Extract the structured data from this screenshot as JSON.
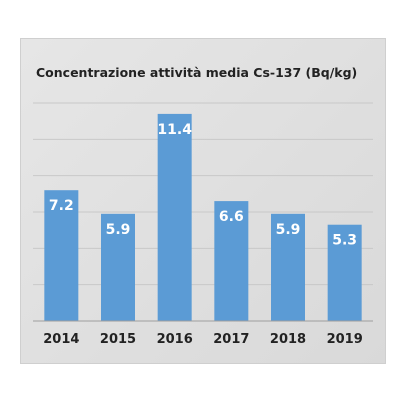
{
  "chart_data": {
    "type": "bar",
    "title": "Concentrazione attività media Cs-137 (Bq/kg)",
    "categories": [
      "2014",
      "2015",
      "2016",
      "2017",
      "2018",
      "2019"
    ],
    "values": [
      7.2,
      5.9,
      11.4,
      6.6,
      5.9,
      5.3
    ],
    "data_labels": [
      "7.2",
      "5.9",
      "11.4",
      "6.6",
      "5.9",
      "5.3"
    ],
    "ylim": [
      0,
      12
    ],
    "grid": true,
    "legend": "none",
    "colors": {
      "bar": "#5b9bd5",
      "grid": "#c8c8c8",
      "axis": "#9e9e9e",
      "label_text": "#ffffff"
    }
  }
}
